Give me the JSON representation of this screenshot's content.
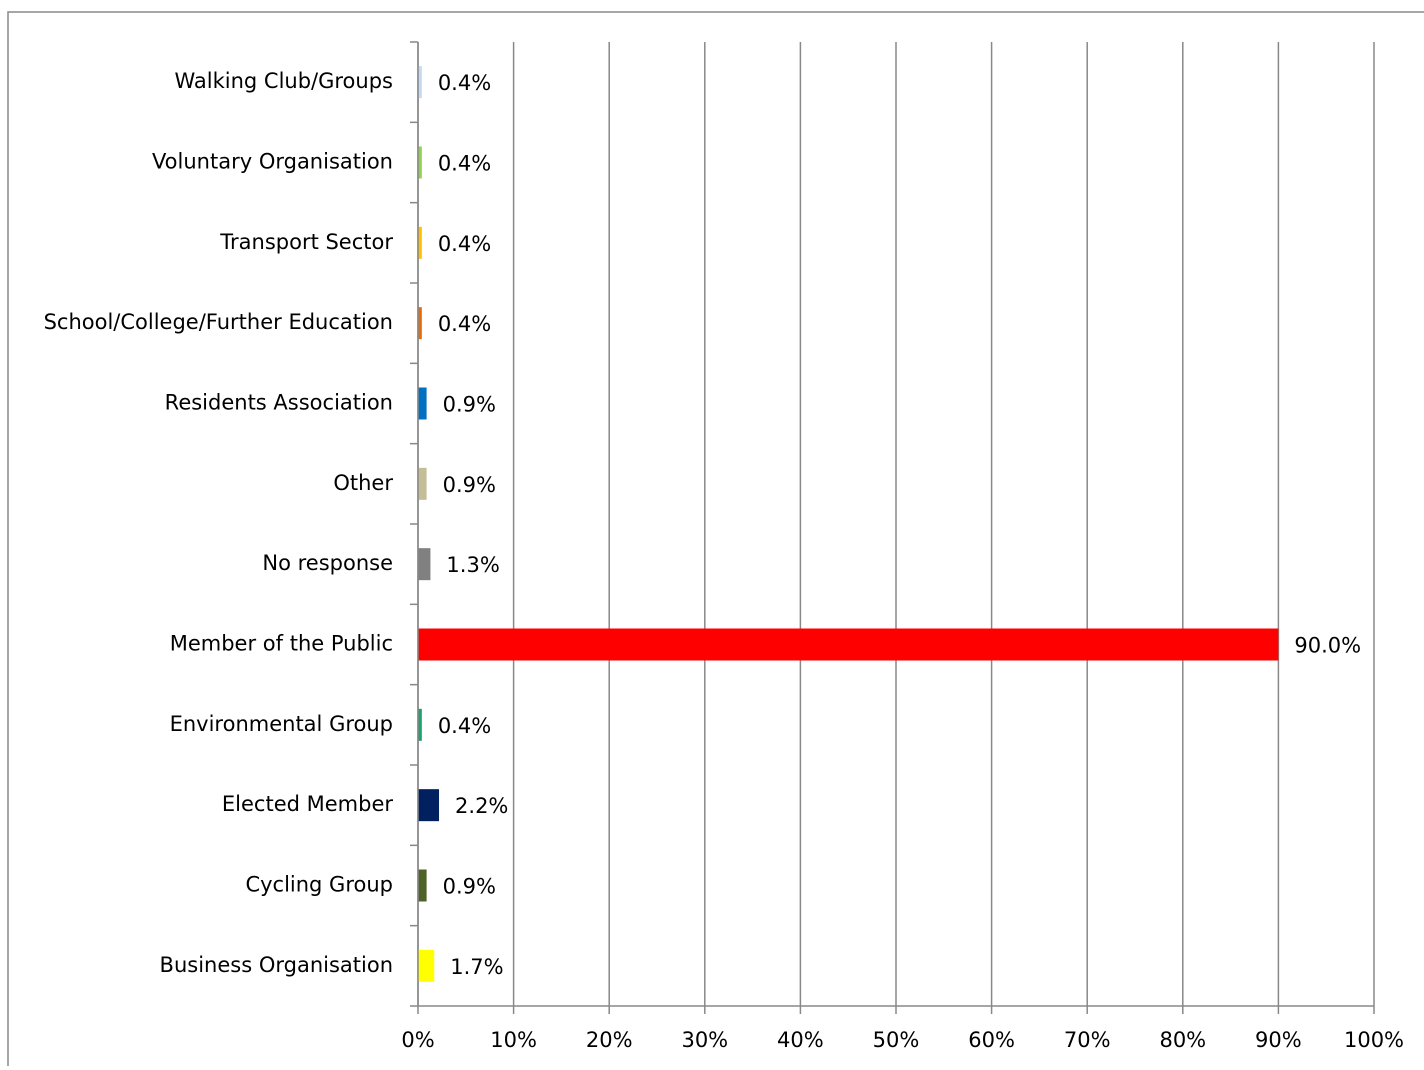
{
  "chart_data": {
    "type": "barh",
    "categories": [
      "Walking Club/Groups",
      "Voluntary Organisation",
      "Transport Sector",
      "School/College/Further Education",
      "Residents Association",
      "Other",
      "No response",
      "Member of the Public",
      "Environmental Group",
      "Elected Member",
      "Cycling Group",
      "Business Organisation"
    ],
    "values": [
      0.4,
      0.4,
      0.4,
      0.4,
      0.9,
      0.9,
      1.3,
      90.0,
      0.4,
      2.2,
      0.9,
      1.7
    ],
    "value_labels": [
      "0.4%",
      "0.4%",
      "0.4%",
      "0.4%",
      "0.9%",
      "0.9%",
      "1.3%",
      "90.0%",
      "0.4%",
      "2.2%",
      "0.9%",
      "1.7%"
    ],
    "colors": [
      "#c5d9f1",
      "#92d050",
      "#ffc000",
      "#e46c0a",
      "#0070c0",
      "#c4bd97",
      "#808080",
      "#ff0000",
      "#1aa36a",
      "#002060",
      "#4f6228",
      "#ffff00"
    ],
    "xlim": [
      0,
      100
    ],
    "xticks": [
      {
        "value": 0,
        "label": "0%"
      },
      {
        "value": 10,
        "label": "10%"
      },
      {
        "value": 20,
        "label": "20%"
      },
      {
        "value": 30,
        "label": "30%"
      },
      {
        "value": 40,
        "label": "40%"
      },
      {
        "value": 50,
        "label": "50%"
      },
      {
        "value": 60,
        "label": "60%"
      },
      {
        "value": 70,
        "label": "70%"
      },
      {
        "value": 80,
        "label": "80%"
      },
      {
        "value": 90,
        "label": "90%"
      },
      {
        "value": 100,
        "label": "100%"
      }
    ],
    "grid": true
  }
}
